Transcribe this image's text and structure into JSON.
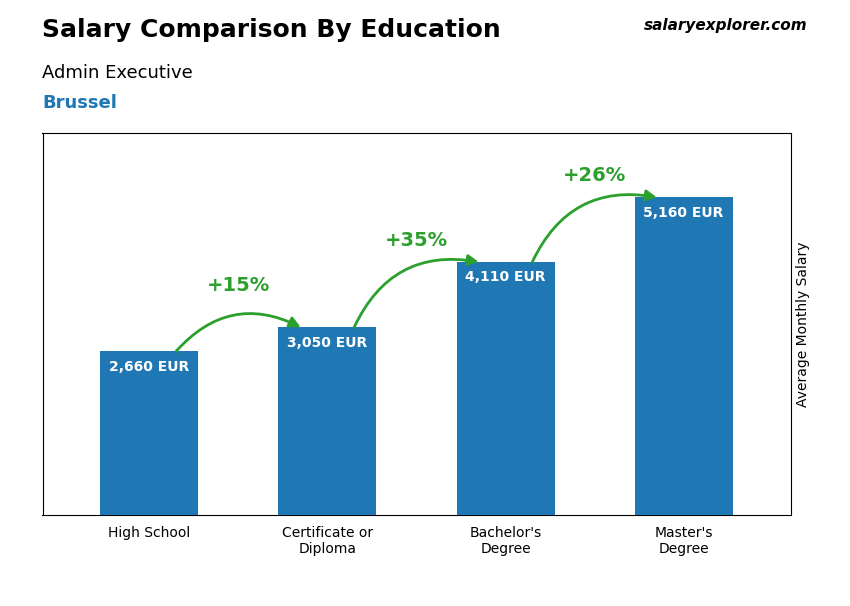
{
  "chart_data": {
    "type": "bar",
    "title": "Salary Comparison By Education",
    "subtitle": "Admin Executive",
    "location": "Brussel",
    "source": "salaryexplorer.com",
    "ylabel": "Average Monthly Salary",
    "categories": [
      "High School",
      "Certificate or\nDiploma",
      "Bachelor's\nDegree",
      "Master's\nDegree"
    ],
    "values": [
      2660,
      3050,
      4110,
      5160
    ],
    "value_labels": [
      "2,660 EUR",
      "3,050 EUR",
      "4,110 EUR",
      "5,160 EUR"
    ],
    "data_labels": true,
    "annotations": [
      {
        "text": "+15%",
        "from": "High School",
        "to": "Certificate or\nDiploma"
      },
      {
        "text": "+35%",
        "from": "Certificate or\nDiploma",
        "to": "Bachelor's\nDegree"
      },
      {
        "text": "+26%",
        "from": "Bachelor's\nDegree",
        "to": "Master's\nDegree"
      }
    ],
    "ylim": [
      0,
      6200
    ],
    "yticks": [],
    "tick_labels": "x",
    "grid": false
  }
}
